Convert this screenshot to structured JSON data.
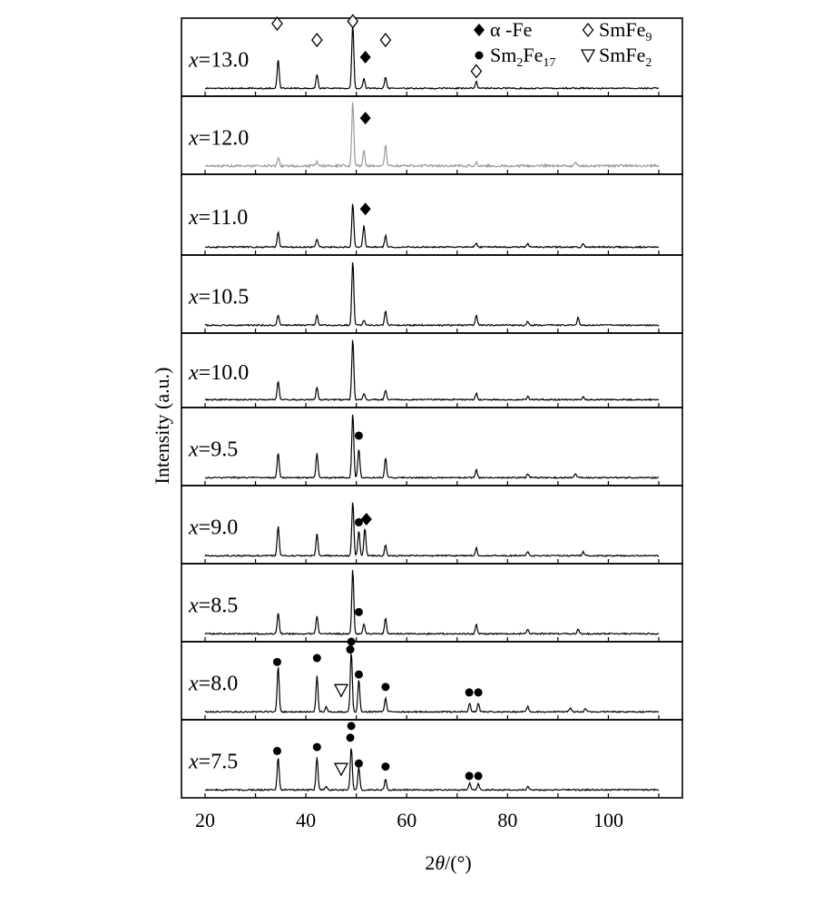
{
  "chart_data": {
    "type": "line",
    "layout": "stacked-panels",
    "xlabel": {
      "prefix": "2",
      "italic": "θ",
      "suffix": "/(°)"
    },
    "ylabel": "Intensity (a.u.)",
    "xlim": [
      15,
      112
    ],
    "xticks": [
      "20",
      "40",
      "60",
      "80",
      "100"
    ],
    "legend": {
      "position": "top-right",
      "entries": [
        {
          "symbol": "diamond-filled",
          "label": "α -Fe"
        },
        {
          "symbol": "diamond-open",
          "label": "SmFe",
          "sub": "9"
        },
        {
          "symbol": "dot",
          "label": "Sm",
          "sub": "2",
          "label2": "Fe",
          "sub2": "17"
        },
        {
          "symbol": "triangle-down",
          "label": "SmFe",
          "sub": "2"
        }
      ]
    },
    "series": [
      {
        "name": "x=13.0",
        "var": "x",
        "value": "=13.0",
        "color": "#000000",
        "peaks": [
          [
            34.5,
            0.45
          ],
          [
            42.2,
            0.22
          ],
          [
            49.3,
            1.0
          ],
          [
            51.5,
            0.15
          ],
          [
            55.8,
            0.17
          ],
          [
            73.8,
            0.1
          ]
        ],
        "markers": [
          [
            "diamond-open",
            34.3,
            0.93
          ],
          [
            "diamond-open",
            42.2,
            0.72
          ],
          [
            "diamond-open",
            49.3,
            0.96
          ],
          [
            "diamond-filled",
            51.8,
            0.5
          ],
          [
            "diamond-open",
            55.8,
            0.72
          ],
          [
            "diamond-open",
            73.8,
            0.32
          ]
        ]
      },
      {
        "name": "x=12.0",
        "var": "x",
        "value": "=12.0",
        "color": "#9a9a9a",
        "peaks": [
          [
            34.5,
            0.12
          ],
          [
            42.2,
            0.06
          ],
          [
            49.3,
            1.0
          ],
          [
            51.5,
            0.24
          ],
          [
            55.8,
            0.32
          ],
          [
            73.8,
            0.05
          ],
          [
            93.5,
            0.06
          ]
        ],
        "markers": [
          [
            "diamond-filled",
            51.8,
            0.72
          ]
        ]
      },
      {
        "name": "x=11.0",
        "var": "x",
        "value": "=11.0",
        "color": "#000000",
        "peaks": [
          [
            34.5,
            0.22
          ],
          [
            42.2,
            0.12
          ],
          [
            49.3,
            0.65
          ],
          [
            51.5,
            0.32
          ],
          [
            55.8,
            0.17
          ],
          [
            73.8,
            0.06
          ],
          [
            84.0,
            0.05
          ],
          [
            95.0,
            0.05
          ]
        ],
        "markers": [
          [
            "diamond-filled",
            51.8,
            0.57
          ]
        ]
      },
      {
        "name": "x=10.5",
        "var": "x",
        "value": "=10.5",
        "color": "#000000",
        "peaks": [
          [
            34.5,
            0.16
          ],
          [
            42.2,
            0.16
          ],
          [
            49.3,
            1.0
          ],
          [
            51.5,
            0.08
          ],
          [
            55.8,
            0.22
          ],
          [
            73.8,
            0.15
          ],
          [
            84.0,
            0.06
          ],
          [
            94.0,
            0.12
          ]
        ],
        "markers": []
      },
      {
        "name": "x=10.0",
        "var": "x",
        "value": "=10.0",
        "color": "#000000",
        "peaks": [
          [
            34.5,
            0.3
          ],
          [
            42.2,
            0.2
          ],
          [
            49.3,
            1.0
          ],
          [
            51.5,
            0.1
          ],
          [
            55.8,
            0.16
          ],
          [
            73.8,
            0.1
          ],
          [
            84.0,
            0.05
          ],
          [
            95.0,
            0.05
          ]
        ],
        "markers": []
      },
      {
        "name": "x=9.5",
        "var": "x",
        "value": "=9.5",
        "color": "#000000",
        "peaks": [
          [
            34.5,
            0.38
          ],
          [
            42.2,
            0.38
          ],
          [
            49.3,
            1.0
          ],
          [
            50.5,
            0.45
          ],
          [
            55.8,
            0.3
          ],
          [
            73.8,
            0.12
          ],
          [
            84.0,
            0.06
          ],
          [
            93.5,
            0.06
          ]
        ],
        "markers": [
          [
            "dot",
            50.5,
            0.64
          ]
        ]
      },
      {
        "name": "x=9.0",
        "var": "x",
        "value": "=9.0",
        "color": "#000000",
        "peaks": [
          [
            34.5,
            0.46
          ],
          [
            42.2,
            0.34
          ],
          [
            49.3,
            0.85
          ],
          [
            50.5,
            0.38
          ],
          [
            51.7,
            0.42
          ],
          [
            55.8,
            0.16
          ],
          [
            73.8,
            0.12
          ],
          [
            84.0,
            0.06
          ],
          [
            95.0,
            0.06
          ]
        ],
        "markers": [
          [
            "dot",
            50.5,
            0.53
          ],
          [
            "diamond-filled",
            52.0,
            0.57
          ]
        ]
      },
      {
        "name": "x=8.5",
        "var": "x",
        "value": "=8.5",
        "color": "#000000",
        "peaks": [
          [
            34.5,
            0.32
          ],
          [
            42.2,
            0.27
          ],
          [
            49.3,
            1.0
          ],
          [
            51.5,
            0.15
          ],
          [
            55.8,
            0.24
          ],
          [
            73.8,
            0.14
          ],
          [
            84.0,
            0.06
          ],
          [
            94.0,
            0.08
          ]
        ],
        "markers": [
          [
            "dot",
            50.5,
            0.38
          ]
        ]
      },
      {
        "name": "x=8.0",
        "var": "x",
        "value": "=8.0",
        "color": "#000000",
        "peaks": [
          [
            34.5,
            0.7
          ],
          [
            42.2,
            0.55
          ],
          [
            44.0,
            0.08
          ],
          [
            49.0,
            0.92
          ],
          [
            50.5,
            0.5
          ],
          [
            55.8,
            0.21
          ],
          [
            72.5,
            0.13
          ],
          [
            74.2,
            0.13
          ],
          [
            84.0,
            0.08
          ],
          [
            92.5,
            0.06
          ],
          [
            95.5,
            0.05
          ]
        ],
        "markers": [
          [
            "dot",
            34.3,
            0.74
          ],
          [
            "dot",
            42.2,
            0.79
          ],
          [
            "triangle-down",
            47.0,
            0.38
          ],
          [
            "dot",
            48.8,
            0.9
          ],
          [
            "dot",
            49.0,
            1.0
          ],
          [
            "dot",
            50.5,
            0.58
          ],
          [
            "dot",
            55.8,
            0.42
          ],
          [
            "dot",
            72.4,
            0.35
          ],
          [
            "dot",
            74.2,
            0.35
          ]
        ]
      },
      {
        "name": "x=7.5",
        "var": "x",
        "value": "=7.5",
        "color": "#000000",
        "peaks": [
          [
            34.5,
            0.5
          ],
          [
            42.2,
            0.5
          ],
          [
            44.0,
            0.05
          ],
          [
            49.0,
            0.66
          ],
          [
            50.5,
            0.35
          ],
          [
            55.8,
            0.16
          ],
          [
            72.5,
            0.1
          ],
          [
            74.2,
            0.1
          ],
          [
            84.0,
            0.05
          ]
        ],
        "markers": [
          [
            "dot",
            34.3,
            0.6
          ],
          [
            "dot",
            42.2,
            0.65
          ],
          [
            "triangle-down",
            47.0,
            0.37
          ],
          [
            "dot",
            48.8,
            0.77
          ],
          [
            "dot",
            49.0,
            0.92
          ],
          [
            "dot",
            50.5,
            0.44
          ],
          [
            "dot",
            55.8,
            0.4
          ],
          [
            "dot",
            72.4,
            0.28
          ],
          [
            "dot",
            74.2,
            0.28
          ]
        ]
      }
    ]
  }
}
